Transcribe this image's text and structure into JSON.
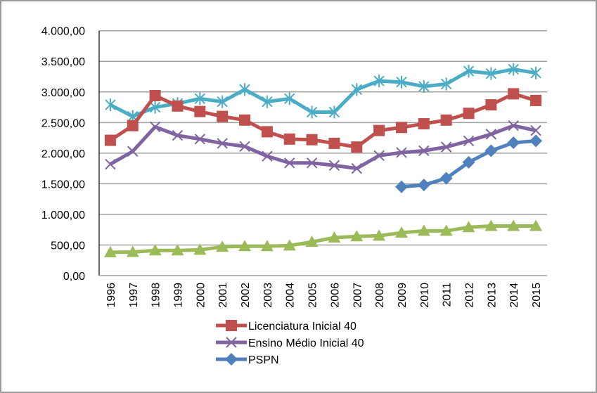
{
  "chart_data": {
    "type": "line",
    "title": "",
    "xlabel": "",
    "ylabel": "",
    "ylim": [
      0,
      4000
    ],
    "y_ticks": [
      0,
      500,
      1000,
      1500,
      2000,
      2500,
      3000,
      3500,
      4000
    ],
    "y_tick_labels": [
      "0,00",
      "500,00",
      "1.000,00",
      "1.500,00",
      "2.000,00",
      "2.500,00",
      "3.000,00",
      "3.500,00",
      "4.000,00"
    ],
    "grid": "horizontal",
    "legend_position": "bottom",
    "categories": [
      "1996",
      "1997",
      "1998",
      "1999",
      "2000",
      "2001",
      "2002",
      "2003",
      "2004",
      "2005",
      "2006",
      "2007",
      "2008",
      "2009",
      "2010",
      "2011",
      "2012",
      "2013",
      "2014",
      "2015"
    ],
    "series": [
      {
        "name": "",
        "in_legend": false,
        "color": "#4BACC6",
        "marker": "asterisk",
        "values": [
          2790,
          2600,
          2750,
          2810,
          2890,
          2840,
          3040,
          2840,
          2890,
          2670,
          2670,
          3040,
          3180,
          3160,
          3090,
          3130,
          3340,
          3300,
          3370,
          3310
        ]
      },
      {
        "name": "Licenciatura Inicial 40",
        "in_legend": true,
        "color": "#C0504D",
        "marker": "square",
        "values": [
          2210,
          2450,
          2940,
          2770,
          2680,
          2600,
          2540,
          2350,
          2230,
          2220,
          2160,
          2100,
          2370,
          2420,
          2480,
          2540,
          2650,
          2790,
          2970,
          2860
        ]
      },
      {
        "name": "Ensino Médio Inicial 40",
        "in_legend": true,
        "color": "#8064A2",
        "marker": "x",
        "values": [
          1820,
          2030,
          2430,
          2290,
          2230,
          2160,
          2110,
          1950,
          1840,
          1840,
          1800,
          1750,
          1960,
          2010,
          2040,
          2100,
          2200,
          2310,
          2450,
          2370
        ]
      },
      {
        "name": "PSPN",
        "in_legend": true,
        "color": "#4F81BD",
        "marker": "diamond",
        "values": [
          null,
          null,
          null,
          null,
          null,
          null,
          null,
          null,
          null,
          null,
          null,
          null,
          null,
          1450,
          1480,
          1590,
          1850,
          2040,
          2170,
          2200
        ]
      },
      {
        "name": "",
        "in_legend": false,
        "color": "#9BBB59",
        "marker": "triangle",
        "values": [
          380,
          385,
          410,
          410,
          420,
          470,
          480,
          480,
          490,
          550,
          620,
          640,
          650,
          700,
          730,
          730,
          790,
          810,
          810,
          810
        ]
      }
    ]
  }
}
